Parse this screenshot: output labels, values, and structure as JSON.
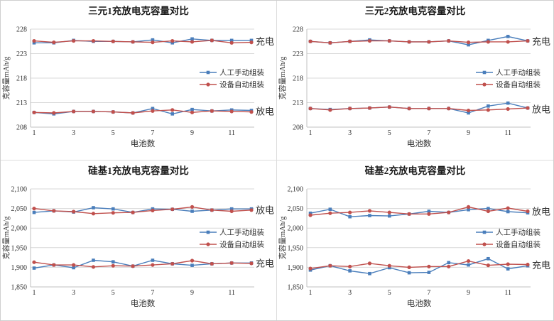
{
  "page": {
    "background": "#ffffff",
    "border_color": "#cfcfcf",
    "grid_line_color": "#d9d9d9",
    "axis_line_color": "#c0c0c0",
    "series_colors": {
      "manual_blue": "#4a7ebb",
      "auto_red": "#c0504d"
    }
  },
  "chart_data": [
    {
      "type": "line",
      "title": "三元1充放电克容量对比",
      "xlabel": "电池数",
      "ylabel": "克容量mAh/g",
      "ylim": [
        208,
        228
      ],
      "ytick_values": [
        228,
        223,
        218,
        213,
        208
      ],
      "ytick_labels": [
        "228",
        "223",
        "218",
        "213",
        "208"
      ],
      "x": [
        1,
        2,
        3,
        4,
        5,
        6,
        7,
        8,
        9,
        10,
        11,
        12
      ],
      "xtick_values": [
        1,
        3,
        5,
        7,
        9,
        11
      ],
      "xtick_labels": [
        "1",
        "3",
        "5",
        "7",
        "9",
        "11"
      ],
      "grid": true,
      "legend_position": "middle-right",
      "legend_entries": [
        {
          "name": "人工手动组装",
          "color": "#4a7ebb",
          "marker": "square"
        },
        {
          "name": "设备自动组装",
          "color": "#c0504d",
          "marker": "circle"
        }
      ],
      "series": [
        {
          "name": "人工手动组装",
          "group": "充电",
          "color": "#4a7ebb",
          "marker": "square",
          "values": [
            225.2,
            225.2,
            225.7,
            225.5,
            225.5,
            225.4,
            225.8,
            225.2,
            226.0,
            225.7,
            225.7,
            225.7
          ]
        },
        {
          "name": "设备自动组装",
          "group": "充电",
          "color": "#c0504d",
          "marker": "circle",
          "values": [
            225.6,
            225.3,
            225.6,
            225.6,
            225.5,
            225.4,
            225.3,
            225.6,
            225.4,
            225.7,
            225.2,
            225.3
          ]
        },
        {
          "name": "人工手动组装",
          "group": "放电",
          "color": "#4a7ebb",
          "marker": "square",
          "values": [
            211.0,
            210.7,
            211.2,
            211.2,
            211.1,
            210.9,
            211.8,
            210.7,
            211.6,
            211.3,
            211.5,
            211.4
          ]
        },
        {
          "name": "设备自动组装",
          "group": "放电",
          "color": "#c0504d",
          "marker": "circle",
          "values": [
            211.0,
            210.9,
            211.2,
            211.2,
            211.1,
            210.9,
            211.3,
            211.5,
            211.0,
            211.3,
            211.2,
            211.1
          ]
        }
      ],
      "cluster_labels": [
        {
          "text": "充电",
          "value": 225.5
        },
        {
          "text": "放电",
          "value": 211.2
        }
      ]
    },
    {
      "type": "line",
      "title": "三元2充放电克容量对比",
      "xlabel": "电池数",
      "ylabel": "克容量mAh/g",
      "ylim": [
        208,
        228
      ],
      "ytick_values": [
        228,
        223,
        218,
        213,
        208
      ],
      "ytick_labels": [
        "228",
        "223",
        "218",
        "213",
        "208"
      ],
      "x": [
        1,
        2,
        3,
        4,
        5,
        6,
        7,
        8,
        9,
        10,
        11,
        12
      ],
      "xtick_values": [
        1,
        3,
        5,
        7,
        9,
        11
      ],
      "xtick_labels": [
        "1",
        "3",
        "5",
        "7",
        "9",
        "11"
      ],
      "grid": true,
      "legend_position": "middle-right",
      "legend_entries": [
        {
          "name": "人工手动组装",
          "color": "#4a7ebb",
          "marker": "square"
        },
        {
          "name": "设备自动组装",
          "color": "#c0504d",
          "marker": "circle"
        }
      ],
      "series": [
        {
          "name": "人工手动组装",
          "group": "充电",
          "color": "#4a7ebb",
          "marker": "square",
          "values": [
            225.5,
            225.2,
            225.5,
            225.8,
            225.6,
            225.4,
            225.4,
            225.6,
            224.8,
            225.7,
            226.5,
            225.6
          ]
        },
        {
          "name": "设备自动组装",
          "group": "充电",
          "color": "#c0504d",
          "marker": "circle",
          "values": [
            225.5,
            225.2,
            225.5,
            225.6,
            225.6,
            225.4,
            225.4,
            225.6,
            225.3,
            225.4,
            225.4,
            225.6
          ]
        },
        {
          "name": "人工手动组装",
          "group": "放电",
          "color": "#4a7ebb",
          "marker": "square",
          "values": [
            211.8,
            211.6,
            211.8,
            211.9,
            212.1,
            211.8,
            211.8,
            211.8,
            210.9,
            212.3,
            212.9,
            211.9
          ]
        },
        {
          "name": "设备自动组装",
          "group": "放电",
          "color": "#c0504d",
          "marker": "circle",
          "values": [
            211.8,
            211.5,
            211.8,
            211.9,
            212.1,
            211.8,
            211.8,
            211.8,
            211.4,
            211.5,
            211.7,
            211.9
          ]
        }
      ],
      "cluster_labels": [
        {
          "text": "充电",
          "value": 225.5
        },
        {
          "text": "放电",
          "value": 211.6
        }
      ]
    },
    {
      "type": "line",
      "title": "硅基1充放电克容量对比",
      "xlabel": "电池数",
      "ylabel": "克容量mAh/g",
      "ylim": [
        1850,
        2100
      ],
      "ytick_values": [
        2100,
        2050,
        2000,
        1950,
        1900,
        1850
      ],
      "ytick_labels": [
        "2,100",
        "2,050",
        "2,000",
        "1,950",
        "1,900",
        "1,850"
      ],
      "x": [
        1,
        2,
        3,
        4,
        5,
        6,
        7,
        8,
        9,
        10,
        11,
        12
      ],
      "xtick_values": [
        1,
        3,
        5,
        7,
        9,
        11
      ],
      "xtick_labels": [
        "1",
        "3",
        "5",
        "7",
        "9",
        "11"
      ],
      "grid": true,
      "legend_position": "middle-right",
      "legend_entries": [
        {
          "name": "人工手动组装",
          "color": "#4a7ebb",
          "marker": "square"
        },
        {
          "name": "设备自动组装",
          "color": "#c0504d",
          "marker": "circle"
        }
      ],
      "series": [
        {
          "name": "人工手动组装",
          "group": "放电",
          "color": "#4a7ebb",
          "marker": "square",
          "values": [
            2040,
            2044,
            2041,
            2052,
            2049,
            2040,
            2049,
            2048,
            2043,
            2046,
            2049,
            2049
          ]
        },
        {
          "name": "设备自动组装",
          "group": "放电",
          "color": "#c0504d",
          "marker": "circle",
          "values": [
            2050,
            2044,
            2042,
            2037,
            2039,
            2040,
            2045,
            2048,
            2054,
            2046,
            2043,
            2046
          ]
        },
        {
          "name": "人工手动组装",
          "group": "充电",
          "color": "#4a7ebb",
          "marker": "square",
          "values": [
            1898,
            1906,
            1899,
            1918,
            1914,
            1903,
            1918,
            1909,
            1905,
            1909,
            1911,
            1911
          ]
        },
        {
          "name": "设备自动组装",
          "group": "充电",
          "color": "#c0504d",
          "marker": "circle",
          "values": [
            1913,
            1906,
            1906,
            1901,
            1904,
            1903,
            1906,
            1909,
            1917,
            1909,
            1911,
            1910
          ]
        }
      ],
      "cluster_labels": [
        {
          "text": "放电",
          "value": 2046
        },
        {
          "text": "充电",
          "value": 1910
        }
      ]
    },
    {
      "type": "line",
      "title": "硅基2充放电克容量对比",
      "xlabel": "电池数",
      "ylabel": "克容量mAh/g",
      "ylim": [
        1850,
        2100
      ],
      "ytick_values": [
        2100,
        2050,
        2000,
        1950,
        1900,
        1850
      ],
      "ytick_labels": [
        "2,100",
        "2,050",
        "2,000",
        "1,950",
        "1,900",
        "1,850"
      ],
      "x": [
        1,
        2,
        3,
        4,
        5,
        6,
        7,
        8,
        9,
        10,
        11,
        12
      ],
      "xtick_values": [
        1,
        3,
        5,
        7,
        9,
        11
      ],
      "xtick_labels": [
        "1",
        "3",
        "5",
        "7",
        "9",
        "11"
      ],
      "grid": true,
      "legend_position": "middle-right",
      "legend_entries": [
        {
          "name": "人工手动组装",
          "color": "#4a7ebb",
          "marker": "square"
        },
        {
          "name": "设备自动组装",
          "color": "#c0504d",
          "marker": "circle"
        }
      ],
      "series": [
        {
          "name": "人工手动组装",
          "group": "放电",
          "color": "#4a7ebb",
          "marker": "square",
          "values": [
            2038,
            2048,
            2029,
            2032,
            2031,
            2036,
            2043,
            2040,
            2047,
            2050,
            2042,
            2039
          ]
        },
        {
          "name": "设备自动组装",
          "group": "放电",
          "color": "#c0504d",
          "marker": "circle",
          "values": [
            2033,
            2038,
            2040,
            2044,
            2040,
            2036,
            2036,
            2040,
            2054,
            2043,
            2051,
            2043
          ]
        },
        {
          "name": "人工手动组装",
          "group": "充电",
          "color": "#4a7ebb",
          "marker": "square",
          "values": [
            1893,
            1904,
            1891,
            1884,
            1899,
            1886,
            1887,
            1912,
            1906,
            1922,
            1896,
            1904
          ]
        },
        {
          "name": "设备自动组装",
          "group": "充电",
          "color": "#c0504d",
          "marker": "circle",
          "values": [
            1897,
            1904,
            1902,
            1910,
            1904,
            1900,
            1902,
            1902,
            1916,
            1905,
            1908,
            1907
          ]
        }
      ],
      "cluster_labels": [
        {
          "text": "放电",
          "value": 2042
        },
        {
          "text": "充电",
          "value": 1905
        }
      ]
    }
  ]
}
